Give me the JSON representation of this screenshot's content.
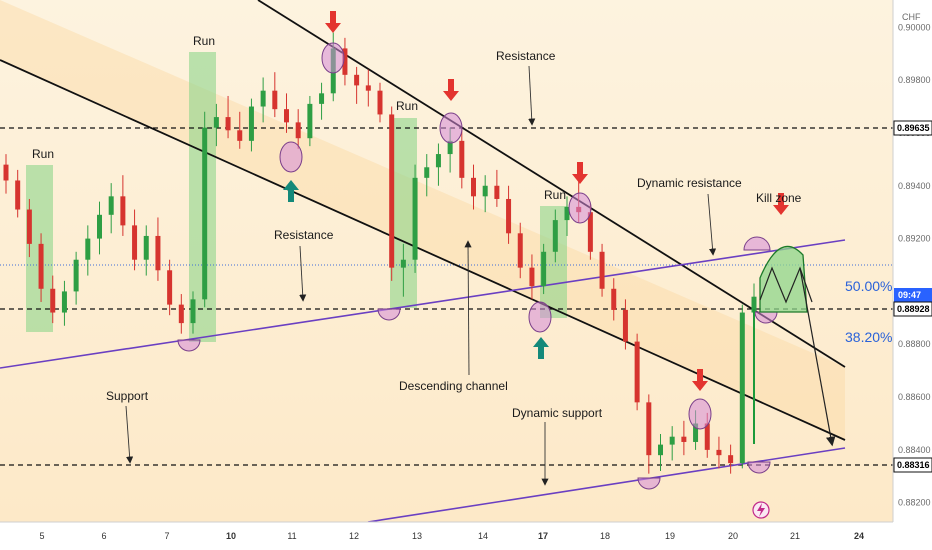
{
  "chart_data": {
    "type": "candlestick",
    "currency": "CHF",
    "x_ticks": [
      "5",
      "6",
      "7",
      "8",
      "10",
      "11",
      "12",
      "13",
      "14",
      "17",
      "18",
      "19",
      "20",
      "21",
      "24"
    ],
    "y_ticks": [
      "0.90000",
      "0.89800",
      "0.89600",
      "0.89400",
      "0.89200",
      "0.89000",
      "0.88800",
      "0.88600",
      "0.88400",
      "0.88200"
    ],
    "price_levels": [
      {
        "label": "0.89635",
        "value": 0.89635,
        "style": "dashed"
      },
      {
        "label": "0.88928",
        "value": 0.88928,
        "style": "dashed"
      },
      {
        "label": "0.88316",
        "value": 0.88316,
        "style": "dashed"
      },
      {
        "label": "",
        "value": 0.891,
        "style": "dotted-blue"
      }
    ],
    "current_time": "09:47",
    "fib_levels": [
      {
        "label": "50.00%",
        "value": 0.8902
      },
      {
        "label": "38.20%",
        "value": 0.8885
      }
    ],
    "annotations": {
      "run": "Run",
      "resistance": "Resistance",
      "support": "Support",
      "descending_channel": "Descending channel",
      "dynamic_resistance": "Dynamic resistance",
      "dynamic_support": "Dynamic support",
      "kill_zone": "Kill zone"
    },
    "candles": [
      [
        0.8948,
        0.8952,
        0.8937,
        0.8942
      ],
      [
        0.8942,
        0.8946,
        0.8928,
        0.8931
      ],
      [
        0.8931,
        0.8935,
        0.8913,
        0.8918
      ],
      [
        0.8918,
        0.8922,
        0.8896,
        0.8901
      ],
      [
        0.8901,
        0.8906,
        0.8888,
        0.8892
      ],
      [
        0.8892,
        0.8904,
        0.8887,
        0.89
      ],
      [
        0.89,
        0.8915,
        0.8895,
        0.8912
      ],
      [
        0.8912,
        0.8925,
        0.8906,
        0.892
      ],
      [
        0.892,
        0.8934,
        0.8914,
        0.8929
      ],
      [
        0.8929,
        0.8941,
        0.8922,
        0.8936
      ],
      [
        0.8936,
        0.8944,
        0.8921,
        0.8925
      ],
      [
        0.8925,
        0.8931,
        0.8908,
        0.8912
      ],
      [
        0.8912,
        0.8925,
        0.8906,
        0.8921
      ],
      [
        0.8921,
        0.8928,
        0.8904,
        0.8908
      ],
      [
        0.8908,
        0.8912,
        0.8891,
        0.8895
      ],
      [
        0.8895,
        0.8899,
        0.8884,
        0.8888
      ],
      [
        0.8888,
        0.89,
        0.8884,
        0.8897
      ],
      [
        0.8897,
        0.8968,
        0.8894,
        0.8962
      ],
      [
        0.8962,
        0.8971,
        0.8955,
        0.8966
      ],
      [
        0.8966,
        0.8974,
        0.8958,
        0.8961
      ],
      [
        0.8961,
        0.8968,
        0.8954,
        0.8957
      ],
      [
        0.8957,
        0.8973,
        0.8953,
        0.897
      ],
      [
        0.897,
        0.8981,
        0.8964,
        0.8976
      ],
      [
        0.8976,
        0.8983,
        0.8966,
        0.8969
      ],
      [
        0.8969,
        0.8975,
        0.896,
        0.8964
      ],
      [
        0.8964,
        0.8969,
        0.8954,
        0.8958
      ],
      [
        0.8958,
        0.8974,
        0.8955,
        0.8971
      ],
      [
        0.8971,
        0.8979,
        0.8965,
        0.8975
      ],
      [
        0.8975,
        0.8998,
        0.8972,
        0.8992
      ],
      [
        0.8992,
        0.8996,
        0.8978,
        0.8982
      ],
      [
        0.8982,
        0.8985,
        0.8971,
        0.8978
      ],
      [
        0.8978,
        0.8984,
        0.897,
        0.8976
      ],
      [
        0.8976,
        0.8979,
        0.8964,
        0.8967
      ],
      [
        0.8967,
        0.897,
        0.8904,
        0.8909
      ],
      [
        0.8909,
        0.8918,
        0.8898,
        0.8912
      ],
      [
        0.8912,
        0.8948,
        0.8907,
        0.8943
      ],
      [
        0.8943,
        0.8952,
        0.8936,
        0.8947
      ],
      [
        0.8947,
        0.8956,
        0.894,
        0.8952
      ],
      [
        0.8952,
        0.8962,
        0.8945,
        0.8957
      ],
      [
        0.8957,
        0.8962,
        0.8939,
        0.8943
      ],
      [
        0.8943,
        0.8948,
        0.8931,
        0.8936
      ],
      [
        0.8936,
        0.8944,
        0.893,
        0.894
      ],
      [
        0.894,
        0.8946,
        0.8932,
        0.8935
      ],
      [
        0.8935,
        0.894,
        0.8918,
        0.8922
      ],
      [
        0.8922,
        0.8926,
        0.8905,
        0.8909
      ],
      [
        0.8909,
        0.8914,
        0.8897,
        0.8902
      ],
      [
        0.8902,
        0.8918,
        0.8899,
        0.8915
      ],
      [
        0.8915,
        0.8931,
        0.8911,
        0.8927
      ],
      [
        0.8927,
        0.8936,
        0.8921,
        0.8932
      ],
      [
        0.8932,
        0.8944,
        0.8926,
        0.893
      ],
      [
        0.893,
        0.8933,
        0.8912,
        0.8915
      ],
      [
        0.8915,
        0.8918,
        0.8898,
        0.8901
      ],
      [
        0.8901,
        0.8905,
        0.8889,
        0.8893
      ],
      [
        0.8893,
        0.8897,
        0.8878,
        0.8881
      ],
      [
        0.8881,
        0.8884,
        0.8855,
        0.8858
      ],
      [
        0.8858,
        0.8861,
        0.8831,
        0.8838
      ],
      [
        0.8838,
        0.8846,
        0.8832,
        0.8842
      ],
      [
        0.8842,
        0.8849,
        0.8836,
        0.8845
      ],
      [
        0.8845,
        0.8851,
        0.8838,
        0.8843
      ],
      [
        0.8843,
        0.8855,
        0.884,
        0.885
      ],
      [
        0.885,
        0.8854,
        0.8837,
        0.884
      ],
      [
        0.884,
        0.8845,
        0.8833,
        0.8838
      ],
      [
        0.8838,
        0.8842,
        0.8831,
        0.8835
      ],
      [
        0.8835,
        0.8895,
        0.8833,
        0.8892
      ],
      [
        0.8892,
        0.8903,
        0.8888,
        0.8898
      ]
    ]
  }
}
